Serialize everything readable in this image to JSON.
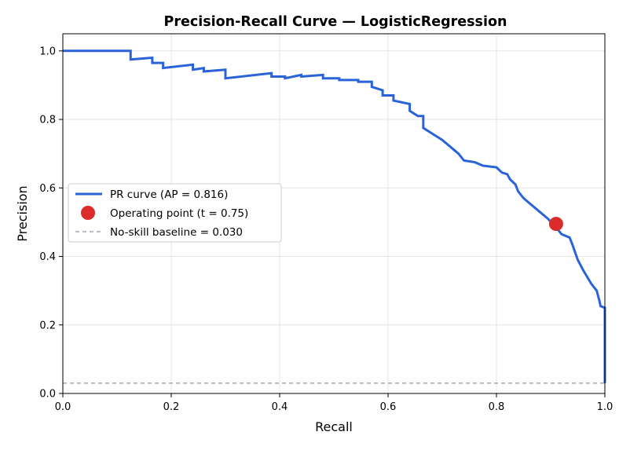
{
  "chart_data": {
    "type": "line",
    "title": "Precision-Recall Curve — LogisticRegression",
    "xlabel": "Recall",
    "ylabel": "Precision",
    "xlim": [
      0.0,
      1.0
    ],
    "ylim": [
      0.0,
      1.05
    ],
    "x_ticks": [
      "0.0",
      "0.2",
      "0.4",
      "0.6",
      "0.8",
      "1.0"
    ],
    "y_ticks": [
      "0.0",
      "0.2",
      "0.4",
      "0.6",
      "0.8",
      "1.0"
    ],
    "grid": true,
    "legend_position": "center-left",
    "series": [
      {
        "name": "PR curve  (AP = 0.816)",
        "kind": "step",
        "color": "#2a63d9",
        "points": [
          [
            0.0,
            1.0
          ],
          [
            0.125,
            1.0
          ],
          [
            0.125,
            0.975
          ],
          [
            0.165,
            0.98
          ],
          [
            0.165,
            0.965
          ],
          [
            0.185,
            0.965
          ],
          [
            0.185,
            0.95
          ],
          [
            0.24,
            0.96
          ],
          [
            0.24,
            0.945
          ],
          [
            0.26,
            0.95
          ],
          [
            0.26,
            0.94
          ],
          [
            0.3,
            0.945
          ],
          [
            0.3,
            0.92
          ],
          [
            0.385,
            0.935
          ],
          [
            0.385,
            0.925
          ],
          [
            0.41,
            0.925
          ],
          [
            0.41,
            0.92
          ],
          [
            0.44,
            0.93
          ],
          [
            0.44,
            0.925
          ],
          [
            0.48,
            0.93
          ],
          [
            0.48,
            0.92
          ],
          [
            0.51,
            0.92
          ],
          [
            0.51,
            0.915
          ],
          [
            0.545,
            0.915
          ],
          [
            0.545,
            0.91
          ],
          [
            0.57,
            0.91
          ],
          [
            0.57,
            0.895
          ],
          [
            0.59,
            0.885
          ],
          [
            0.59,
            0.87
          ],
          [
            0.61,
            0.87
          ],
          [
            0.61,
            0.855
          ],
          [
            0.64,
            0.845
          ],
          [
            0.64,
            0.825
          ],
          [
            0.655,
            0.81
          ],
          [
            0.665,
            0.81
          ],
          [
            0.665,
            0.775
          ],
          [
            0.69,
            0.75
          ],
          [
            0.7,
            0.74
          ],
          [
            0.715,
            0.72
          ],
          [
            0.73,
            0.7
          ],
          [
            0.74,
            0.68
          ],
          [
            0.76,
            0.675
          ],
          [
            0.775,
            0.665
          ],
          [
            0.8,
            0.66
          ],
          [
            0.81,
            0.645
          ],
          [
            0.82,
            0.64
          ],
          [
            0.825,
            0.625
          ],
          [
            0.835,
            0.61
          ],
          [
            0.84,
            0.59
          ],
          [
            0.85,
            0.57
          ],
          [
            0.865,
            0.55
          ],
          [
            0.88,
            0.53
          ],
          [
            0.895,
            0.51
          ],
          [
            0.91,
            0.485
          ],
          [
            0.92,
            0.465
          ],
          [
            0.935,
            0.455
          ],
          [
            0.94,
            0.435
          ],
          [
            0.95,
            0.39
          ],
          [
            0.96,
            0.36
          ],
          [
            0.975,
            0.32
          ],
          [
            0.985,
            0.3
          ],
          [
            0.99,
            0.27
          ],
          [
            0.992,
            0.255
          ],
          [
            1.0,
            0.25
          ],
          [
            1.0,
            0.18
          ],
          [
            1.0,
            0.03
          ]
        ]
      },
      {
        "name": "Operating point  (t = 0.75)",
        "kind": "marker",
        "color": "#dc2b2b",
        "points": [
          [
            0.91,
            0.495
          ]
        ]
      },
      {
        "name": "No-skill baseline = 0.030",
        "kind": "hline",
        "color": "#a6a6b3",
        "y": 0.03
      }
    ]
  }
}
